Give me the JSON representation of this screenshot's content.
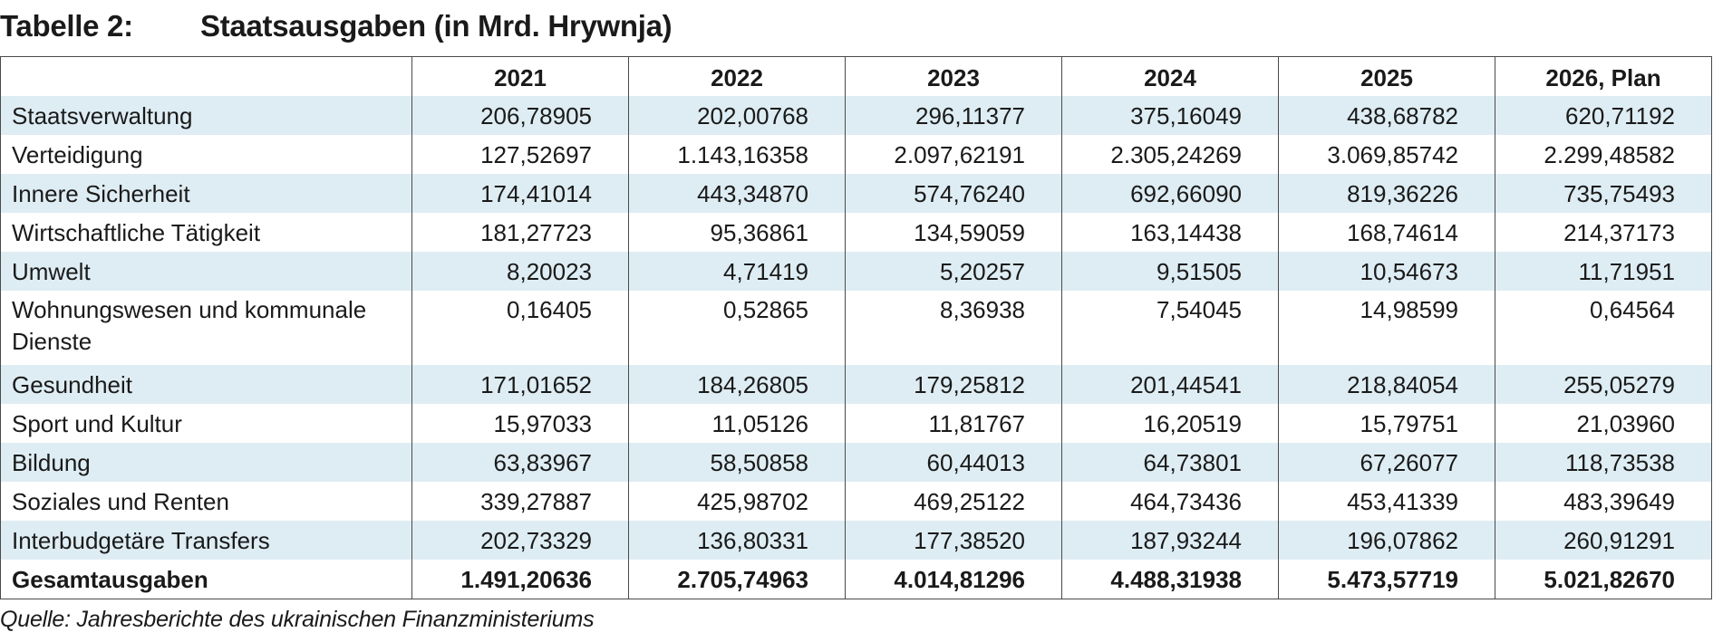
{
  "header": {
    "label": "Tabelle 2:",
    "title": "Staatsausgaben (in Mrd. Hrywnja)"
  },
  "table": {
    "columns": [
      "",
      "2021",
      "2022",
      "2023",
      "2024",
      "2025",
      "2026, Plan"
    ],
    "rows": [
      {
        "label": "Staatsverwaltung",
        "values": [
          "206,78905",
          "202,00768",
          "296,11377",
          "375,16049",
          "438,68782",
          "620,71192"
        ]
      },
      {
        "label": "Verteidigung",
        "values": [
          "127,52697",
          "1.143,16358",
          "2.097,62191",
          "2.305,24269",
          "3.069,85742",
          "2.299,48582"
        ]
      },
      {
        "label": "Innere Sicherheit",
        "values": [
          "174,41014",
          "443,34870",
          "574,76240",
          "692,66090",
          "819,36226",
          "735,75493"
        ]
      },
      {
        "label": "Wirtschaftliche Tätigkeit",
        "values": [
          "181,27723",
          "95,36861",
          "134,59059",
          "163,14438",
          "168,74614",
          "214,37173"
        ]
      },
      {
        "label": "Umwelt",
        "values": [
          "8,20023",
          "4,71419",
          "5,20257",
          "9,51505",
          "10,54673",
          "11,71951"
        ]
      },
      {
        "label": "Wohnungswesen und kommunale Dienste",
        "values": [
          "0,16405",
          "0,52865",
          "8,36938",
          "7,54045",
          "14,98599",
          "0,64564"
        ]
      },
      {
        "label": "Gesundheit",
        "values": [
          "171,01652",
          "184,26805",
          "179,25812",
          "201,44541",
          "218,84054",
          "255,05279"
        ]
      },
      {
        "label": "Sport und Kultur",
        "values": [
          "15,97033",
          "11,05126",
          "11,81767",
          "16,20519",
          "15,79751",
          "21,03960"
        ]
      },
      {
        "label": "Bildung",
        "values": [
          "63,83967",
          "58,50858",
          "60,44013",
          "64,73801",
          "67,26077",
          "118,73538"
        ]
      },
      {
        "label": "Soziales und Renten",
        "values": [
          "339,27887",
          "425,98702",
          "469,25122",
          "464,73436",
          "453,41339",
          "483,39649"
        ]
      },
      {
        "label": "Interbudgetäre Transfers",
        "values": [
          "202,73329",
          "136,80331",
          "177,38520",
          "187,93244",
          "196,07862",
          "260,91291"
        ]
      },
      {
        "label": "Gesamtausgaben",
        "values": [
          "1.491,20636",
          "2.705,74963",
          "4.014,81296",
          "4.488,31938",
          "5.473,57719",
          "5.021,82670"
        ]
      }
    ],
    "row_shade_color": "#deedf3",
    "border_color": "#4a4a4a"
  },
  "source": "Quelle: Jahresberichte des ukrainischen Finanzministeriums"
}
